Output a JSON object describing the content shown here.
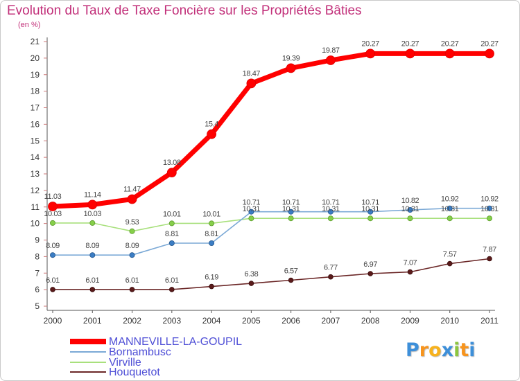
{
  "chart_data": {
    "type": "line",
    "title": "Evolution du Taux de Taxe Foncière sur les Propriétés Bâties",
    "subtitle": "(en %)",
    "xlabel": "",
    "ylabel": "",
    "categories": [
      "2000",
      "2001",
      "2002",
      "2003",
      "2004",
      "2005",
      "2006",
      "2007",
      "2008",
      "2009",
      "2010",
      "2011"
    ],
    "ylim": [
      5,
      21
    ],
    "yticks": [
      5,
      6,
      7,
      8,
      9,
      10,
      11,
      12,
      13,
      14,
      15,
      16,
      17,
      18,
      19,
      20,
      21
    ],
    "grid": false,
    "series": [
      {
        "name": "MANNEVILLE-LA-GOUPIL",
        "color": "#ff0000",
        "marker_color": "#ff0000",
        "marker_stroke": "#dd0000",
        "values": [
          11.03,
          11.14,
          11.47,
          13.08,
          15.4,
          18.47,
          19.39,
          19.87,
          20.27,
          20.27,
          20.27,
          20.27
        ]
      },
      {
        "name": "Bornambusc",
        "color": "#7ba9d6",
        "marker_color": "#3b7dc4",
        "marker_stroke": "#24568c",
        "values": [
          8.09,
          8.09,
          8.09,
          8.81,
          8.81,
          10.71,
          10.71,
          10.71,
          10.71,
          10.82,
          10.92,
          10.92
        ]
      },
      {
        "name": "Virville",
        "color": "#a8e07c",
        "marker_color": "#86cf4a",
        "marker_stroke": "#5b9a2c",
        "values": [
          10.03,
          10.03,
          9.53,
          10.01,
          10.01,
          10.31,
          10.31,
          10.31,
          10.31,
          10.31,
          10.31,
          10.31
        ]
      },
      {
        "name": "Houquetot",
        "color": "#6b2727",
        "marker_color": "#5a1a1a",
        "marker_stroke": "#3a0e0e",
        "values": [
          6.01,
          6.01,
          6.01,
          6.01,
          6.19,
          6.38,
          6.57,
          6.77,
          6.97,
          7.07,
          7.57,
          7.87
        ]
      }
    ]
  },
  "colors": {
    "title": "#c2307a",
    "legend_text": "#4f4fd6",
    "axis": "#555555",
    "tick": "#cc7777"
  },
  "logo": {
    "text": "Proxiti",
    "letter_colors": [
      "#3d8fd9",
      "#f7941d",
      "#f7b21d",
      "#3d8fd9",
      "#8cc63f",
      "#f7941d",
      "#3d8fd9"
    ]
  }
}
